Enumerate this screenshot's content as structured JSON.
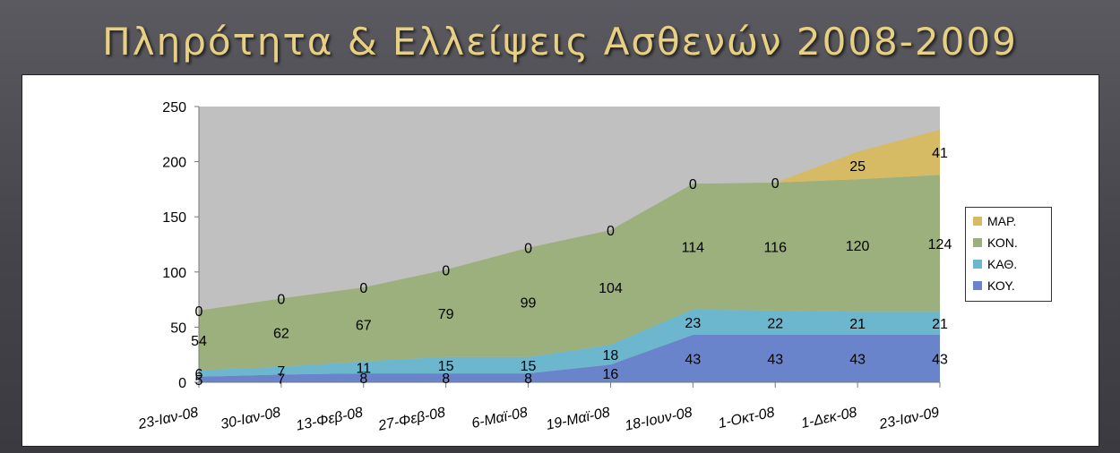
{
  "slide": {
    "title": "Πληρότητα & Ελλείψεις Ασθενών 2008-2009"
  },
  "chart_data": {
    "type": "area",
    "stacked": true,
    "title": "",
    "xlabel": "",
    "ylabel": "",
    "categories": [
      "23-Ιαν-08",
      "30-Ιαν-08",
      "13-Φεβ-08",
      "27-Φεβ-08",
      "6-Μαϊ-08",
      "19-Μαϊ-08",
      "18-Ιουν-08",
      "1-Οκτ-08",
      "1-Δεκ-08",
      "23-Ιαν-09"
    ],
    "ylim": [
      0,
      250
    ],
    "yticks": [
      0,
      50,
      100,
      150,
      200,
      250
    ],
    "series": [
      {
        "name": "ΚΟΥ.",
        "color": "#6a84cc",
        "values": [
          5,
          7,
          8,
          8,
          8,
          16,
          43,
          43,
          43,
          43
        ]
      },
      {
        "name": "ΚΑΘ.",
        "color": "#6cb6ce",
        "values": [
          6,
          7,
          11,
          15,
          15,
          18,
          23,
          22,
          21,
          21
        ]
      },
      {
        "name": "ΚΟΝ.",
        "color": "#9bb07c",
        "values": [
          54,
          62,
          67,
          79,
          99,
          104,
          114,
          116,
          120,
          124
        ]
      },
      {
        "name": "ΜΑΡ.",
        "color": "#d6bb64",
        "values": [
          0,
          0,
          0,
          0,
          0,
          0,
          0,
          0,
          25,
          41
        ]
      }
    ],
    "plot_background": "#c0c0c0",
    "grid": false,
    "legend_position": "right"
  }
}
